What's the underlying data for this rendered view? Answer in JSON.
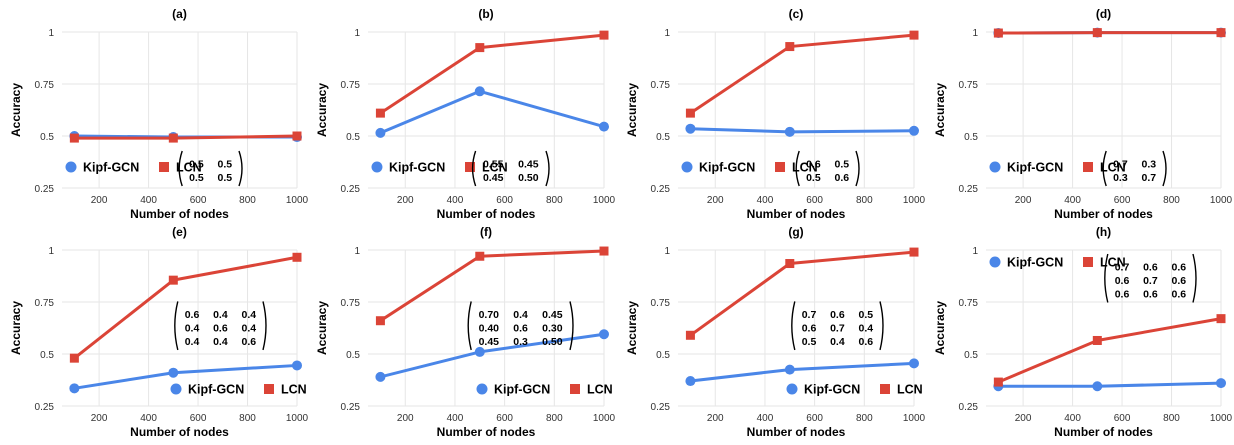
{
  "chart_data": [
    {
      "type": "line",
      "title": "(a)",
      "xlabel": "Number of nodes",
      "ylabel": "Accuracy",
      "x": [
        100,
        500,
        1000
      ],
      "xlim": [
        50,
        1000
      ],
      "xticks": [
        200,
        400,
        600,
        800,
        1000
      ],
      "ylim": [
        0.25,
        1.0
      ],
      "yticks": [
        0.25,
        0.5,
        0.75,
        1
      ],
      "ytick_labels": [
        "0.25",
        "0.5",
        "0.75",
        "1"
      ],
      "grid": true,
      "legend": "bottom-left",
      "series": [
        {
          "name": "Kipf-GCN",
          "values": [
            0.5,
            0.495,
            0.495
          ]
        },
        {
          "name": "LCN",
          "values": [
            0.49,
            0.49,
            0.5
          ]
        }
      ],
      "matrix": [
        [
          "0.5",
          "0.5"
        ],
        [
          "0.5",
          "0.5"
        ]
      ],
      "matrix_placement": "bottom-right"
    },
    {
      "type": "line",
      "title": "(b)",
      "xlabel": "Number of nodes",
      "ylabel": "Accuracy",
      "x": [
        100,
        500,
        1000
      ],
      "xlim": [
        50,
        1000
      ],
      "xticks": [
        200,
        400,
        600,
        800,
        1000
      ],
      "ylim": [
        0.25,
        1.0
      ],
      "yticks": [
        0.25,
        0.5,
        0.75,
        1
      ],
      "ytick_labels": [
        "0.25",
        "0.5",
        "0.75",
        "1"
      ],
      "grid": true,
      "legend": "bottom-left",
      "series": [
        {
          "name": "Kipf-GCN",
          "values": [
            0.515,
            0.715,
            0.545
          ]
        },
        {
          "name": "LCN",
          "values": [
            0.61,
            0.925,
            0.985
          ]
        }
      ],
      "matrix": [
        [
          "0.55",
          "0.45"
        ],
        [
          "0.45",
          "0.50"
        ]
      ],
      "matrix_placement": "bottom-right"
    },
    {
      "type": "line",
      "title": "(c)",
      "xlabel": "Number of nodes",
      "ylabel": "Accuracy",
      "x": [
        100,
        500,
        1000
      ],
      "xlim": [
        50,
        1000
      ],
      "xticks": [
        200,
        400,
        600,
        800,
        1000
      ],
      "ylim": [
        0.25,
        1.0
      ],
      "yticks": [
        0.25,
        0.5,
        0.75,
        1
      ],
      "ytick_labels": [
        "0.25",
        "0.5",
        "0.75",
        "1"
      ],
      "grid": true,
      "legend": "bottom-left",
      "series": [
        {
          "name": "Kipf-GCN",
          "values": [
            0.535,
            0.52,
            0.525
          ]
        },
        {
          "name": "LCN",
          "values": [
            0.61,
            0.93,
            0.985
          ]
        }
      ],
      "matrix": [
        [
          "0.6",
          "0.5"
        ],
        [
          "0.5",
          "0.6"
        ]
      ],
      "matrix_placement": "bottom-right"
    },
    {
      "type": "line",
      "title": "(d)",
      "xlabel": "Number of nodes",
      "ylabel": "Accuracy",
      "x": [
        100,
        500,
        1000
      ],
      "xlim": [
        50,
        1000
      ],
      "xticks": [
        200,
        400,
        600,
        800,
        1000
      ],
      "ylim": [
        0.25,
        1.0
      ],
      "yticks": [
        0.25,
        0.5,
        0.75,
        1
      ],
      "ytick_labels": [
        "0.25",
        "0.5",
        "0.75",
        "1"
      ],
      "grid": true,
      "legend": "bottom-left",
      "series": [
        {
          "name": "Kipf-GCN",
          "values": [
            0.995,
            0.997,
            0.997
          ]
        },
        {
          "name": "LCN",
          "values": [
            0.995,
            0.997,
            0.997
          ]
        }
      ],
      "matrix": [
        [
          "0.7",
          "0.3"
        ],
        [
          "0.3",
          "0.7"
        ]
      ],
      "matrix_placement": "bottom-right"
    },
    {
      "type": "line",
      "title": "(e)",
      "xlabel": "Number of nodes",
      "ylabel": "Accuracy",
      "x": [
        100,
        500,
        1000
      ],
      "xlim": [
        50,
        1000
      ],
      "xticks": [
        200,
        400,
        600,
        800,
        1000
      ],
      "ylim": [
        0.25,
        1.0
      ],
      "yticks": [
        0.25,
        0.5,
        0.75,
        1
      ],
      "ytick_labels": [
        "0.25",
        "0.5",
        "0.75",
        "1"
      ],
      "grid": true,
      "legend": "bottom-right",
      "series": [
        {
          "name": "Kipf-GCN",
          "values": [
            0.335,
            0.41,
            0.445
          ]
        },
        {
          "name": "LCN",
          "values": [
            0.48,
            0.855,
            0.965
          ]
        }
      ],
      "matrix": [
        [
          "0.6",
          "0.4",
          "0.4"
        ],
        [
          "0.4",
          "0.6",
          "0.4"
        ],
        [
          "0.4",
          "0.4",
          "0.6"
        ]
      ],
      "matrix_placement": "middle-right"
    },
    {
      "type": "line",
      "title": "(f)",
      "xlabel": "Number of nodes",
      "ylabel": "Accuracy",
      "x": [
        100,
        500,
        1000
      ],
      "xlim": [
        50,
        1000
      ],
      "xticks": [
        200,
        400,
        600,
        800,
        1000
      ],
      "ylim": [
        0.25,
        1.0
      ],
      "yticks": [
        0.25,
        0.5,
        0.75,
        1
      ],
      "ytick_labels": [
        "0.25",
        "0.5",
        "0.75",
        "1"
      ],
      "grid": true,
      "legend": "bottom-right",
      "series": [
        {
          "name": "Kipf-GCN",
          "values": [
            0.39,
            0.51,
            0.595
          ]
        },
        {
          "name": "LCN",
          "values": [
            0.66,
            0.97,
            0.995
          ]
        }
      ],
      "matrix": [
        [
          "0.70",
          "0.4",
          "0.45"
        ],
        [
          "0.40",
          "0.6",
          "0.30"
        ],
        [
          "0.45",
          "0.3",
          "0.50"
        ]
      ],
      "matrix_placement": "middle-right"
    },
    {
      "type": "line",
      "title": "(g)",
      "xlabel": "Number of nodes",
      "ylabel": "Accuracy",
      "x": [
        100,
        500,
        1000
      ],
      "xlim": [
        50,
        1000
      ],
      "xticks": [
        200,
        400,
        600,
        800,
        1000
      ],
      "ylim": [
        0.25,
        1.0
      ],
      "yticks": [
        0.25,
        0.5,
        0.75,
        1
      ],
      "ytick_labels": [
        "0.25",
        "0.5",
        "0.75",
        "1"
      ],
      "grid": true,
      "legend": "bottom-right",
      "series": [
        {
          "name": "Kipf-GCN",
          "values": [
            0.37,
            0.425,
            0.455
          ]
        },
        {
          "name": "LCN",
          "values": [
            0.59,
            0.935,
            0.99
          ]
        }
      ],
      "matrix": [
        [
          "0.7",
          "0.6",
          "0.5"
        ],
        [
          "0.6",
          "0.7",
          "0.4"
        ],
        [
          "0.5",
          "0.4",
          "0.6"
        ]
      ],
      "matrix_placement": "middle-right"
    },
    {
      "type": "line",
      "title": "(h)",
      "xlabel": "Number of nodes",
      "ylabel": "Accuracy",
      "x": [
        100,
        500,
        1000
      ],
      "xlim": [
        50,
        1000
      ],
      "xticks": [
        200,
        400,
        600,
        800,
        1000
      ],
      "ylim": [
        0.25,
        1.0
      ],
      "yticks": [
        0.25,
        0.5,
        0.75,
        1
      ],
      "ytick_labels": [
        "0.25",
        "0.5",
        "0.75",
        "1"
      ],
      "grid": true,
      "legend": "top-left",
      "series": [
        {
          "name": "Kipf-GCN",
          "values": [
            0.345,
            0.345,
            0.36
          ]
        },
        {
          "name": "LCN",
          "values": [
            0.365,
            0.565,
            0.67
          ]
        }
      ],
      "matrix": [
        [
          "0.7",
          "0.6",
          "0.6"
        ],
        [
          "0.6",
          "0.7",
          "0.6"
        ],
        [
          "0.6",
          "0.6",
          "0.6"
        ]
      ],
      "matrix_placement": "top-right"
    }
  ],
  "colors": {
    "Kipf-GCN": "#4a86e8",
    "LCN": "#db4437",
    "grid": "#e6e6e6",
    "text": "#000000"
  }
}
